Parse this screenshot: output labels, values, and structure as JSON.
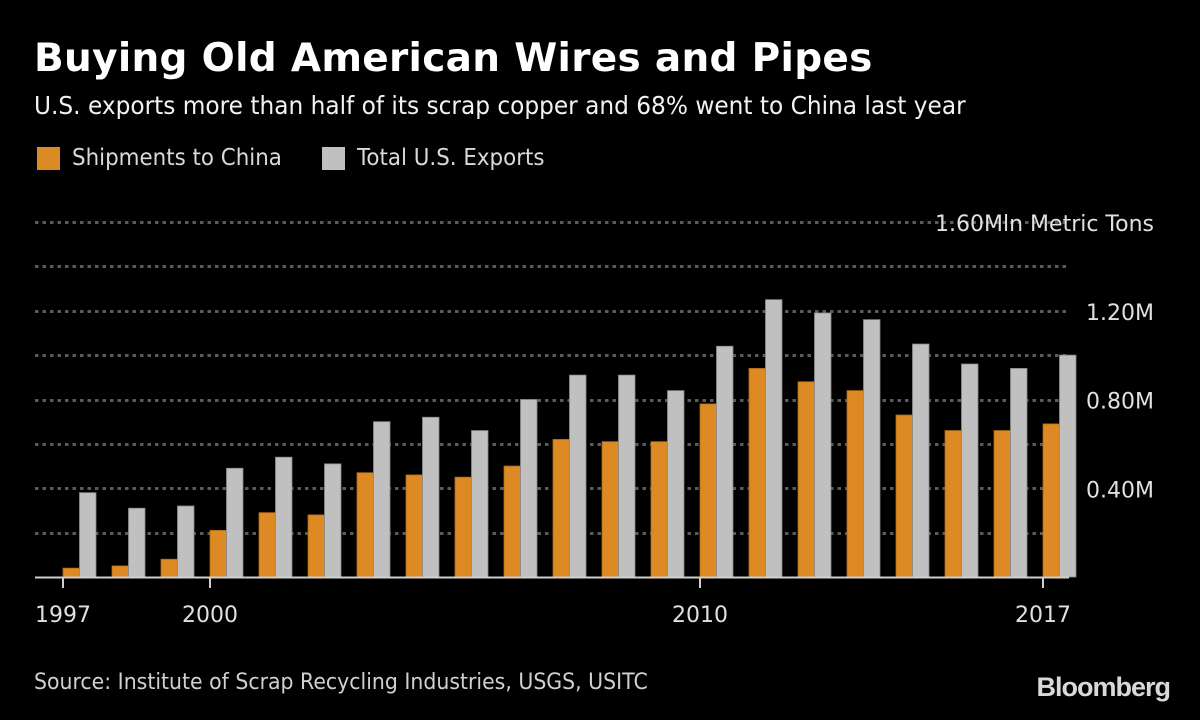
{
  "header": {
    "title": "Buying Old American Wires and Pipes",
    "subtitle": "U.S. exports more than half of its scrap copper and 68% went to China last year"
  },
  "legend": [
    {
      "label": "Shipments to China",
      "color": "#dd8a25"
    },
    {
      "label": "Total U.S. Exports",
      "color": "#c0c0c0"
    }
  ],
  "footer": {
    "source": "Source: Institute of Scrap Recycling Industries, USGS, USITC",
    "brand": "Bloomberg"
  },
  "colors": {
    "background": "#000000",
    "china": "#dd8a25",
    "total": "#c0c0c0",
    "grid": "#5a5a5a",
    "axis": "#cfcfcf",
    "tick_text": "#e0e0e0"
  },
  "chart_data": {
    "type": "bar",
    "title": "Buying Old American Wires and Pipes",
    "subtitle": "U.S. exports more than half of its scrap copper and 68% went to China last year",
    "xlabel": "",
    "ylabel": "Mln Metric Tons",
    "unit_label": "1.60Mln Metric Tons",
    "ylim": [
      0,
      1.6
    ],
    "grid": true,
    "grid_step": 0.2,
    "y_ticks": [
      {
        "value": 0.4,
        "label": "0.40M"
      },
      {
        "value": 0.8,
        "label": "0.80M"
      },
      {
        "value": 1.2,
        "label": "1.20M"
      },
      {
        "value": 1.6,
        "label": "1.60Mln Metric Tons"
      }
    ],
    "x_ticks": [
      {
        "index": 0,
        "label": "1997"
      },
      {
        "index": 3,
        "label": "2000"
      },
      {
        "index": 13,
        "label": "2010"
      },
      {
        "index": 20,
        "label": "2017"
      }
    ],
    "y_axis_position": "right",
    "legend_position": "top-left",
    "categories": [
      "1997",
      "1998",
      "1999",
      "2000",
      "2001",
      "2002",
      "2003",
      "2004",
      "2005",
      "2006",
      "2007",
      "2008",
      "2009",
      "2010",
      "2011",
      "2012",
      "2013",
      "2014",
      "2015",
      "2016",
      "2017"
    ],
    "series": [
      {
        "name": "Shipments to China",
        "color": "#dd8a25",
        "values": [
          0.04,
          0.05,
          0.08,
          0.21,
          0.29,
          0.28,
          0.47,
          0.46,
          0.45,
          0.5,
          0.62,
          0.61,
          0.61,
          0.78,
          0.94,
          0.88,
          0.84,
          0.73,
          0.66,
          0.66,
          0.69
        ]
      },
      {
        "name": "Total U.S. Exports",
        "color": "#c0c0c0",
        "values": [
          0.38,
          0.31,
          0.32,
          0.49,
          0.54,
          0.51,
          0.7,
          0.72,
          0.66,
          0.8,
          0.91,
          0.91,
          0.84,
          1.04,
          1.25,
          1.19,
          1.16,
          1.05,
          0.96,
          0.94,
          1.0
        ]
      }
    ]
  }
}
